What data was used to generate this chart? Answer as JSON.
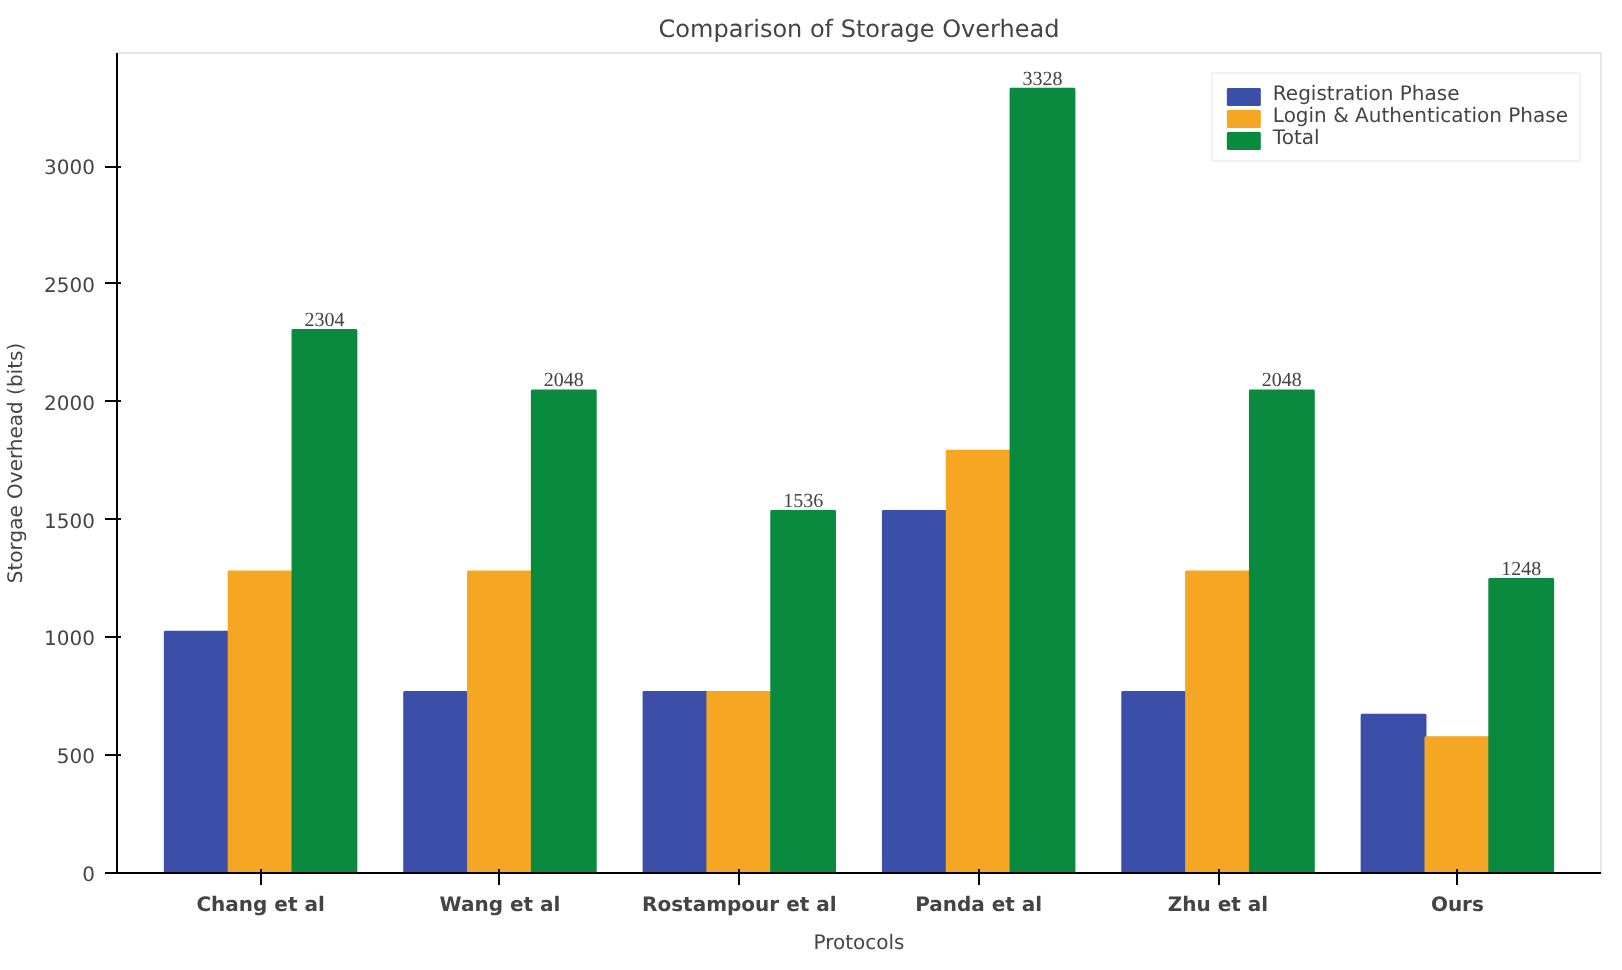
{
  "chart_data": {
    "type": "bar",
    "title": "Comparison of Storage Overhead",
    "xlabel": "Protocols",
    "ylabel": "Storgae Overhead (bits)",
    "categories": [
      "Chang et al",
      "Wang et al",
      "Rostampour et al",
      "Panda et al",
      "Zhu et al",
      "Ours"
    ],
    "series": [
      {
        "name": "Registration Phase",
        "color": "#3b4fa8",
        "values": [
          1024,
          768,
          768,
          1536,
          768,
          672
        ]
      },
      {
        "name": "Login & Authentication Phase",
        "color": "#f5a623",
        "values": [
          1280,
          1280,
          768,
          1792,
          1280,
          576
        ]
      },
      {
        "name": "Total",
        "color": "#0a8a3f",
        "values": [
          2304,
          2048,
          1536,
          3328,
          2048,
          1248
        ],
        "value_labels": [
          "2304",
          "2048",
          "1536",
          "3328",
          "2048",
          "1248"
        ]
      }
    ],
    "ylim": [
      0,
      3480
    ],
    "yticks": [
      0,
      500,
      1000,
      1500,
      2000,
      2500,
      3000
    ],
    "grid": false,
    "legend": "top right"
  }
}
